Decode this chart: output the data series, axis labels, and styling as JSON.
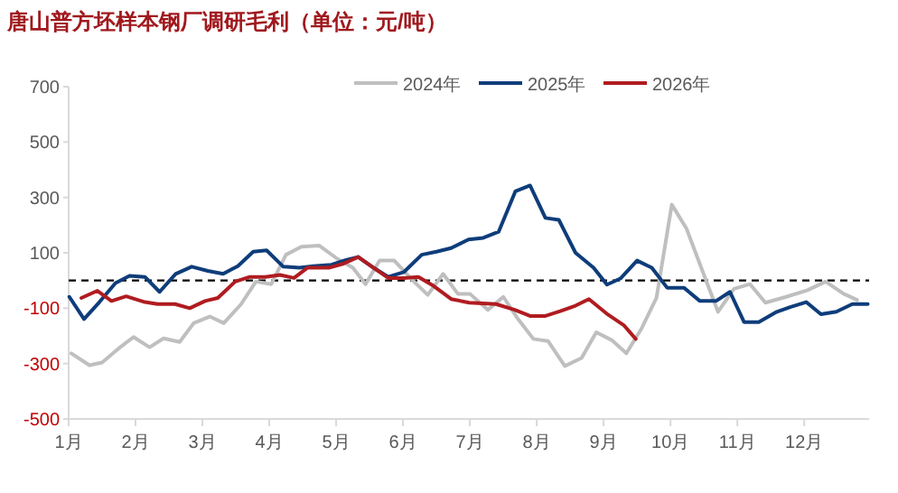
{
  "chart_data": {
    "type": "line",
    "title": "唐山普方坯样本钢厂调研毛利（单位：元/吨）",
    "xlim": [
      1,
      12.97
    ],
    "xticks": [
      {
        "value": 1,
        "label": "1月"
      },
      {
        "value": 2,
        "label": "2月"
      },
      {
        "value": 3,
        "label": "3月"
      },
      {
        "value": 4,
        "label": "4月"
      },
      {
        "value": 5,
        "label": "5月"
      },
      {
        "value": 6,
        "label": "6月"
      },
      {
        "value": 7,
        "label": "7月"
      },
      {
        "value": 8,
        "label": "8月"
      },
      {
        "value": 9,
        "label": "9月"
      },
      {
        "value": 10,
        "label": "10月"
      },
      {
        "value": 11,
        "label": "11月"
      },
      {
        "value": 12,
        "label": "12月"
      }
    ],
    "ylim": [
      -500,
      700
    ],
    "yticks": [
      -500,
      -300,
      -100,
      100,
      300,
      500,
      700
    ],
    "legend": "top",
    "grid": false,
    "marker": "none",
    "line_style": "solid",
    "ref_lines": [
      {
        "axis": "y",
        "value": 0,
        "color": "#000000",
        "line_style": "dashed"
      }
    ],
    "series": [
      {
        "name": "2024年",
        "color": "#bfbfbf",
        "x": [
          1.04,
          1.31,
          1.5,
          1.77,
          1.97,
          2.21,
          2.42,
          2.66,
          2.87,
          3.11,
          3.32,
          3.58,
          3.8,
          4.03,
          4.25,
          4.48,
          4.75,
          5.02,
          5.25,
          5.44,
          5.65,
          5.87,
          6.14,
          6.37,
          6.6,
          6.82,
          7.0,
          7.27,
          7.5,
          7.72,
          7.95,
          8.17,
          8.42,
          8.67,
          8.89,
          9.12,
          9.34,
          9.57,
          9.79,
          10.02,
          10.24,
          10.46,
          10.71,
          10.95,
          11.19,
          11.42,
          11.73,
          12.05,
          12.32,
          12.59,
          12.79
        ],
        "values": [
          -263,
          -306,
          -296,
          -241,
          -204,
          -241,
          -209,
          -222,
          -154,
          -130,
          -154,
          -85,
          -4,
          -13,
          93,
          122,
          126,
          78,
          46,
          -13,
          72,
          72,
          2,
          -52,
          24,
          -48,
          -48,
          -106,
          -59,
          -139,
          -211,
          -219,
          -309,
          -280,
          -187,
          -215,
          -263,
          -172,
          -63,
          274,
          187,
          46,
          -113,
          -30,
          -13,
          -80,
          -59,
          -35,
          -4,
          -48,
          -70
        ]
      },
      {
        "name": "2025年",
        "color": "#0e3d7a",
        "x": [
          1.01,
          1.23,
          1.46,
          1.7,
          1.91,
          2.14,
          2.36,
          2.6,
          2.84,
          3.08,
          3.31,
          3.53,
          3.76,
          3.96,
          4.21,
          4.45,
          4.66,
          4.93,
          5.15,
          5.33,
          5.56,
          5.78,
          6.01,
          6.28,
          6.5,
          6.72,
          6.98,
          7.2,
          7.43,
          7.68,
          7.9,
          8.13,
          8.33,
          8.58,
          8.85,
          9.05,
          9.25,
          9.5,
          9.72,
          9.95,
          10.2,
          10.44,
          10.68,
          10.89,
          11.1,
          11.32,
          11.59,
          11.79,
          12.03,
          12.25,
          12.48,
          12.72,
          12.95
        ],
        "values": [
          -59,
          -139,
          -78,
          -9,
          17,
          13,
          -41,
          24,
          50,
          35,
          24,
          52,
          104,
          109,
          50,
          46,
          52,
          57,
          74,
          85,
          46,
          13,
          30,
          93,
          104,
          117,
          148,
          154,
          176,
          322,
          343,
          226,
          219,
          100,
          46,
          -15,
          7,
          72,
          46,
          -26,
          -26,
          -74,
          -74,
          -41,
          -150,
          -150,
          -113,
          -96,
          -78,
          -122,
          -113,
          -85,
          -85
        ]
      },
      {
        "name": "2026年",
        "color": "#b01c20",
        "x": [
          1.19,
          1.43,
          1.64,
          1.86,
          2.14,
          2.33,
          2.59,
          2.81,
          3.04,
          3.23,
          3.49,
          3.71,
          3.94,
          4.16,
          4.37,
          4.57,
          4.89,
          5.11,
          5.33,
          5.56,
          5.78,
          6.01,
          6.23,
          6.46,
          6.72,
          6.99,
          7.39,
          7.67,
          7.9,
          8.13,
          8.35,
          8.58,
          8.78,
          9.07,
          9.3,
          9.48
        ],
        "values": [
          -63,
          -37,
          -74,
          -57,
          -78,
          -85,
          -85,
          -100,
          -74,
          -63,
          -4,
          13,
          13,
          20,
          9,
          46,
          46,
          61,
          85,
          46,
          9,
          9,
          13,
          -20,
          -67,
          -80,
          -85,
          -106,
          -128,
          -128,
          -111,
          -91,
          -67,
          -124,
          -161,
          -211
        ]
      }
    ]
  }
}
